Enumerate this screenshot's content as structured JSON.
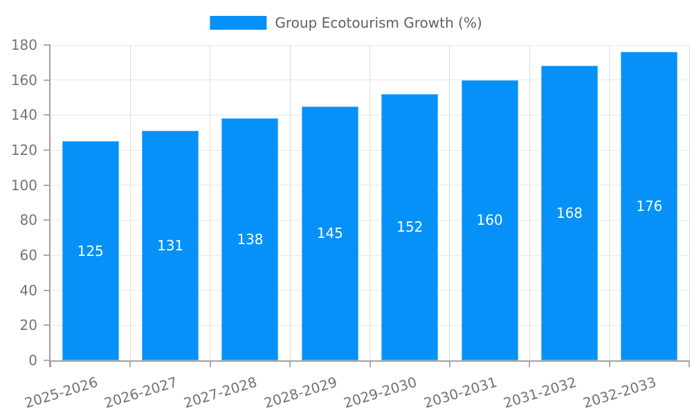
{
  "legend": {
    "label": "Group Ecotourism Growth (%)"
  },
  "colors": {
    "bar": "#0691f8",
    "bar_border": "rgba(255,255,255,0.35)",
    "grid_horizontal": "#e7e7e7",
    "grid_vertical": "#dedede",
    "axis": "#a0a0a0",
    "tick": "#ababab",
    "tick_label": "#737373",
    "legend_text": "#606060",
    "value_label": "#ffffff",
    "background": "#ffffff"
  },
  "chart_data": {
    "type": "bar",
    "title": "Group Ecotourism Growth (%)",
    "series_name": "Group Ecotourism Growth (%)",
    "categories": [
      "2025-2026",
      "2026-2027",
      "2027-2028",
      "2028-2029",
      "2029-2030",
      "2030-2031",
      "2031-2032",
      "2032-2033"
    ],
    "values": [
      125,
      131,
      138,
      145,
      152,
      160,
      168,
      176
    ],
    "value_labels_position": "inside-center",
    "xlabel": "",
    "ylabel": "",
    "ylim": [
      0,
      180
    ],
    "ytick_step": 20,
    "grid": true,
    "legend_position": "top-center",
    "x_label_rotation_deg": -17
  }
}
